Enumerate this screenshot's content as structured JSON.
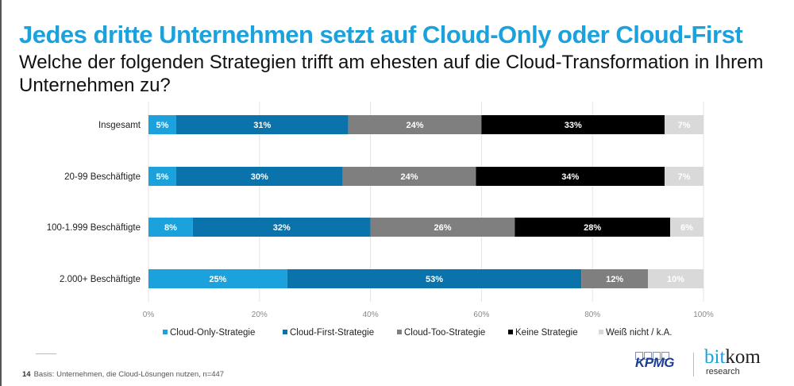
{
  "header": {
    "title": "Jedes dritte Unternehmen setzt auf Cloud-Only oder Cloud-First",
    "subtitle": "Welche der folgenden Strategien trifft am ehesten auf die Cloud-Transformation in Ihrem Unternehmen zu?"
  },
  "footer": {
    "page_number": "14",
    "note": "Basis: Unternehmen, die Cloud-Lösungen nutzen, n=447"
  },
  "logos": {
    "kpmg": "KPMG",
    "bitkom_part1": "bit",
    "bitkom_part2": "kom",
    "bitkom_sub": "research"
  },
  "chart_data": {
    "type": "bar",
    "orientation": "horizontal",
    "stacked": true,
    "title": "Jedes dritte Unternehmen setzt auf Cloud-Only oder Cloud-First",
    "subtitle": "Welche der folgenden Strategien trifft am ehesten auf die Cloud-Transformation in Ihrem Unternehmen zu?",
    "xlabel": "",
    "ylabel": "",
    "xlim": [
      0,
      100
    ],
    "x_ticks": [
      "0%",
      "20%",
      "40%",
      "60%",
      "80%",
      "100%"
    ],
    "grid": true,
    "legend_position": "bottom",
    "categories": [
      "Insgesamt",
      "20-99 Beschäftigte",
      "100-1.999 Beschäftigte",
      "2.000+ Beschäftigte"
    ],
    "series": [
      {
        "name": "Cloud-Only-Strategie",
        "color": "#1ba1dc",
        "label_color": "#ffffff",
        "values": [
          5,
          5,
          8,
          25
        ]
      },
      {
        "name": "Cloud-First-Strategie",
        "color": "#0a73ab",
        "label_color": "#ffffff",
        "values": [
          31,
          30,
          32,
          53
        ]
      },
      {
        "name": "Cloud-Too-Strategie",
        "color": "#7f7f7f",
        "label_color": "#ffffff",
        "values": [
          24,
          24,
          26,
          12
        ]
      },
      {
        "name": "Keine Strategie",
        "color": "#000000",
        "label_color": "#ffffff",
        "values": [
          33,
          34,
          28,
          0
        ]
      },
      {
        "name": "Weiß nicht / k.A.",
        "color": "#d9d9d9",
        "label_color": "#ffffff",
        "values": [
          7,
          7,
          6,
          10
        ]
      }
    ]
  }
}
